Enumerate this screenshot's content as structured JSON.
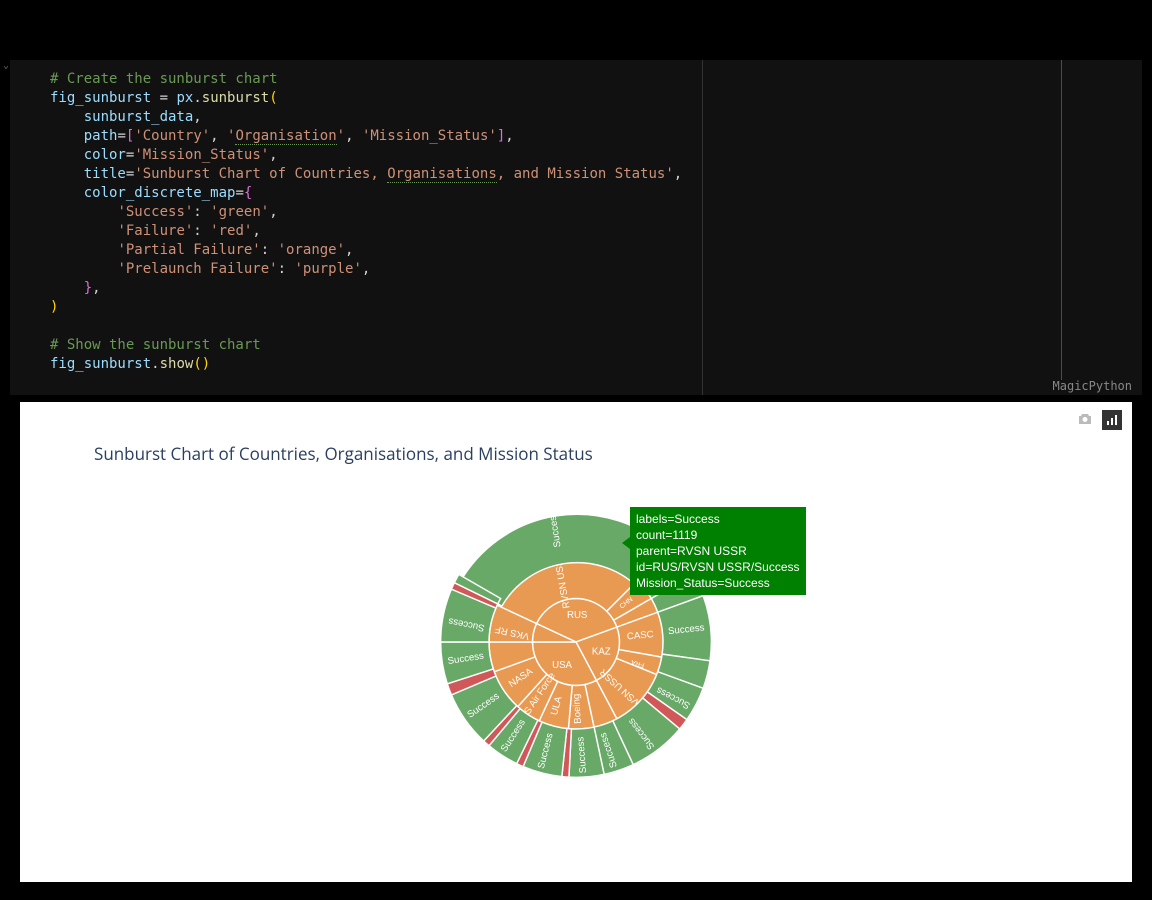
{
  "editor": {
    "language": "MagicPython",
    "comment1": "# Create the sunburst chart",
    "line2_a": "fig_sunburst",
    "line2_b": "px",
    "line2_c": "sunburst",
    "line3": "sunburst_data",
    "line4_param": "path",
    "line4_v1": "'Country'",
    "line4_v2": "'Organisation'",
    "line4_v3": "'Mission_Status'",
    "line5_param": "color",
    "line5_val": "'Mission_Status'",
    "line6_param": "title",
    "line6_val": "'Sunburst Chart of Countries, Organisations, and Mission Status'",
    "line6_squiggle": "Organisations",
    "line7_param": "color_discrete_map",
    "line8_k": "'Success'",
    "line8_v": "'green'",
    "line9_k": "'Failure'",
    "line9_v": "'red'",
    "line10_k": "'Partial Failure'",
    "line10_v": "'orange'",
    "line11_k": "'Prelaunch Failure'",
    "line11_v": "'purple'",
    "comment2": "# Show the sunburst chart",
    "line14_a": "fig_sunburst",
    "line14_b": "show"
  },
  "chart": {
    "title": "Sunburst Chart of Countries, Organisations, and Mission Status",
    "colors": {
      "success": "#68a968",
      "failure": "#d15858",
      "partial": "#e89a52",
      "center": "#e89a52",
      "bg": "#ffffff",
      "stroke": "#ffffff"
    },
    "tooltip": {
      "l1": "labels=Success",
      "l2": "count=1119",
      "l3": "parent=RVSN USSR",
      "l4": "id=RUS/RVSN USSR/Success",
      "l5": "Mission_Status=Success"
    },
    "ring1": [
      {
        "label": "RUS",
        "start": 295,
        "end": 70,
        "color": "#e89a52"
      },
      {
        "label": "KAZ",
        "start": 70,
        "end": 152,
        "color": "#e89a52"
      },
      {
        "label": "USA",
        "start": 152,
        "end": 270,
        "color": "#e89a52"
      },
      {
        "label": "",
        "start": 270,
        "end": 295,
        "color": "#e89a52"
      }
    ],
    "ring2": [
      {
        "label": "RVSN USSR",
        "start": 295,
        "end": 45,
        "color": "#e89a52"
      },
      {
        "label": "CHN",
        "start": 45,
        "end": 60,
        "color": "#e89a52"
      },
      {
        "label": "",
        "start": 60,
        "end": 70,
        "color": "#e89a52"
      },
      {
        "label": "CASC",
        "start": 70,
        "end": 100,
        "color": "#e89a52"
      },
      {
        "label": "FRA",
        "start": 100,
        "end": 112,
        "color": "#e89a52"
      },
      {
        "label": "RVSN USSR",
        "start": 112,
        "end": 152,
        "color": "#e89a52"
      },
      {
        "label": "Boeing",
        "start": 168,
        "end": 185,
        "color": "#e89a52"
      },
      {
        "label": "ULA",
        "start": 185,
        "end": 205,
        "color": "#e89a52"
      },
      {
        "label": "US Air Force",
        "start": 205,
        "end": 222,
        "color": "#e89a52"
      },
      {
        "label": "NASA",
        "start": 222,
        "end": 250,
        "color": "#e89a52"
      },
      {
        "label": "",
        "start": 250,
        "end": 270,
        "color": "#e89a52"
      },
      {
        "label": "VKS RF",
        "start": 270,
        "end": 295,
        "color": "#e89a52"
      },
      {
        "label": "",
        "start": 152,
        "end": 168,
        "color": "#e89a52"
      }
    ],
    "ring3": [
      {
        "label": "Success",
        "start": 300,
        "end": 42,
        "color": "#68a968",
        "exploded": true
      },
      {
        "label": "",
        "start": 42,
        "end": 48,
        "color": "#d15858"
      },
      {
        "label": "Success",
        "start": 48,
        "end": 60,
        "color": "#68a968"
      },
      {
        "label": "",
        "start": 60,
        "end": 70,
        "color": "#68a968"
      },
      {
        "label": "Success",
        "start": 70,
        "end": 98,
        "color": "#68a968"
      },
      {
        "label": "",
        "start": 98,
        "end": 110,
        "color": "#68a968"
      },
      {
        "label": "Success",
        "start": 110,
        "end": 125,
        "color": "#68a968"
      },
      {
        "label": "Failure",
        "start": 125,
        "end": 130,
        "color": "#d15858"
      },
      {
        "label": "Success",
        "start": 130,
        "end": 155,
        "color": "#68a968"
      },
      {
        "label": "Success",
        "start": 155,
        "end": 168,
        "color": "#68a968"
      },
      {
        "label": "Success",
        "start": 168,
        "end": 183,
        "color": "#68a968"
      },
      {
        "label": "",
        "start": 183,
        "end": 186,
        "color": "#d15858"
      },
      {
        "label": "Success",
        "start": 186,
        "end": 203,
        "color": "#68a968"
      },
      {
        "label": "",
        "start": 203,
        "end": 206,
        "color": "#d15858"
      },
      {
        "label": "Success",
        "start": 206,
        "end": 220,
        "color": "#68a968"
      },
      {
        "label": "",
        "start": 220,
        "end": 223,
        "color": "#d15858"
      },
      {
        "label": "Success",
        "start": 223,
        "end": 247,
        "color": "#68a968"
      },
      {
        "label": "",
        "start": 247,
        "end": 252,
        "color": "#d15858"
      },
      {
        "label": "Success",
        "start": 252,
        "end": 270,
        "color": "#68a968"
      },
      {
        "label": "Success",
        "start": 270,
        "end": 293,
        "color": "#68a968"
      },
      {
        "label": "",
        "start": 293,
        "end": 296,
        "color": "#d15858"
      },
      {
        "label": "",
        "start": 296,
        "end": 300,
        "color": "#68a968"
      }
    ]
  }
}
